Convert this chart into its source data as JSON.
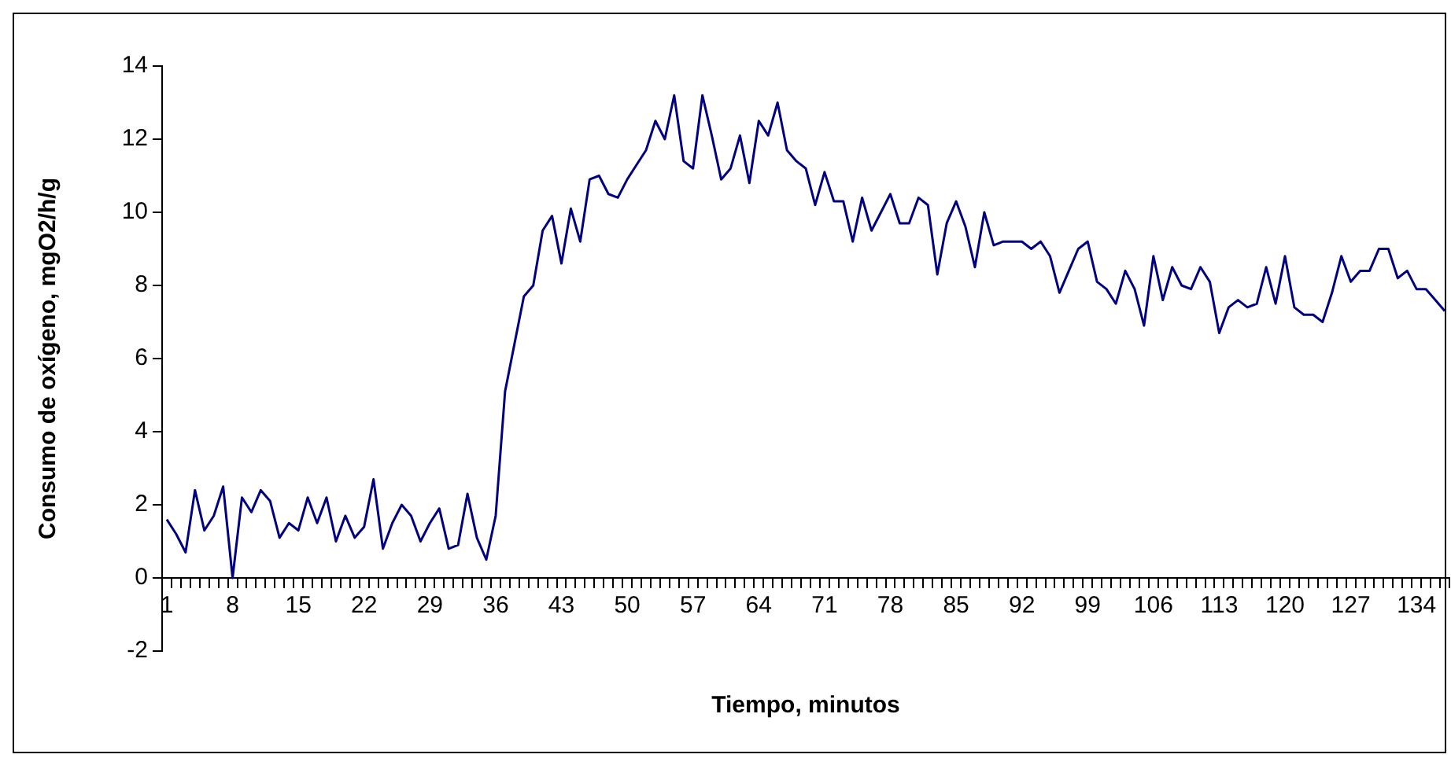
{
  "chart_data": {
    "type": "line",
    "xlabel": "Tiempo, minutos",
    "ylabel": "Consumo de oxígeno, mgO2/h/g",
    "categories": [
      "1",
      null,
      null,
      null,
      null,
      null,
      null,
      "8",
      null,
      null,
      null,
      null,
      null,
      null,
      "15",
      null,
      null,
      null,
      null,
      null,
      null,
      "22",
      null,
      null,
      null,
      null,
      null,
      null,
      "29",
      null,
      null,
      null,
      null,
      null,
      null,
      "36",
      null,
      null,
      null,
      null,
      null,
      null,
      "43",
      null,
      null,
      null,
      null,
      null,
      null,
      "50",
      null,
      null,
      null,
      null,
      null,
      null,
      "57",
      null,
      null,
      null,
      null,
      null,
      null,
      "64",
      null,
      null,
      null,
      null,
      null,
      null,
      "71",
      null,
      null,
      null,
      null,
      null,
      null,
      "78",
      null,
      null,
      null,
      null,
      null,
      null,
      "85",
      null,
      null,
      null,
      null,
      null,
      null,
      "92",
      null,
      null,
      null,
      null,
      null,
      null,
      "99",
      null,
      null,
      null,
      null,
      null,
      null,
      "106",
      null,
      null,
      null,
      null,
      null,
      null,
      "113",
      null,
      null,
      null,
      null,
      null,
      null,
      "120",
      null,
      null,
      null,
      null,
      null,
      null,
      "127",
      null,
      null,
      null,
      null,
      null,
      null,
      "134",
      null,
      null,
      null
    ],
    "series": [
      {
        "color": "#000080",
        "values": [
          1.6,
          1.2,
          0.7,
          2.4,
          1.3,
          1.7,
          2.5,
          0,
          2.2,
          1.8,
          2.4,
          2.1,
          1.1,
          1.5,
          1.3,
          2.2,
          1.5,
          2.2,
          1,
          1.7,
          1.1,
          1.4,
          2.7,
          0.8,
          1.5,
          2,
          1.7,
          1,
          1.5,
          1.9,
          0.8,
          0.9,
          2.3,
          1.1,
          0.5,
          1.7,
          5.1,
          6.4,
          7.7,
          8,
          9.5,
          9.9,
          8.6,
          10.1,
          9.2,
          10.9,
          11,
          10.5,
          10.4,
          10.9,
          11.3,
          11.7,
          12.5,
          12,
          13.2,
          11.4,
          11.2,
          13.2,
          12.1,
          10.9,
          11.2,
          12.1,
          10.8,
          12.5,
          12.1,
          13,
          11.7,
          11.4,
          11.2,
          10.2,
          11.1,
          10.3,
          10.3,
          9.2,
          10.4,
          9.5,
          10,
          10.5,
          9.7,
          9.7,
          10.4,
          10.2,
          8.3,
          9.7,
          10.3,
          9.6,
          8.5,
          10,
          9.1,
          9.2,
          9.2,
          9.2,
          9,
          9.2,
          8.8,
          7.8,
          8.4,
          9,
          9.2,
          8.1,
          7.9,
          7.5,
          8.4,
          7.9,
          6.9,
          8.8,
          7.6,
          8.5,
          8,
          7.9,
          8.5,
          8.1,
          6.7,
          7.4,
          7.6,
          7.4,
          7.5,
          8.5,
          7.5,
          8.8,
          7.4,
          7.2,
          7.2,
          7,
          7.8,
          8.8,
          8.1,
          8.4,
          8.4,
          9,
          9,
          8.2,
          8.4,
          7.9,
          7.9,
          7.6,
          7.3
        ]
      }
    ],
    "ylim": [
      -2,
      14
    ],
    "yticks": [
      -2,
      0,
      2,
      4,
      6,
      8,
      10,
      12,
      14
    ],
    "grid": false,
    "legend": false,
    "marker": "none",
    "line_style": "solid"
  }
}
